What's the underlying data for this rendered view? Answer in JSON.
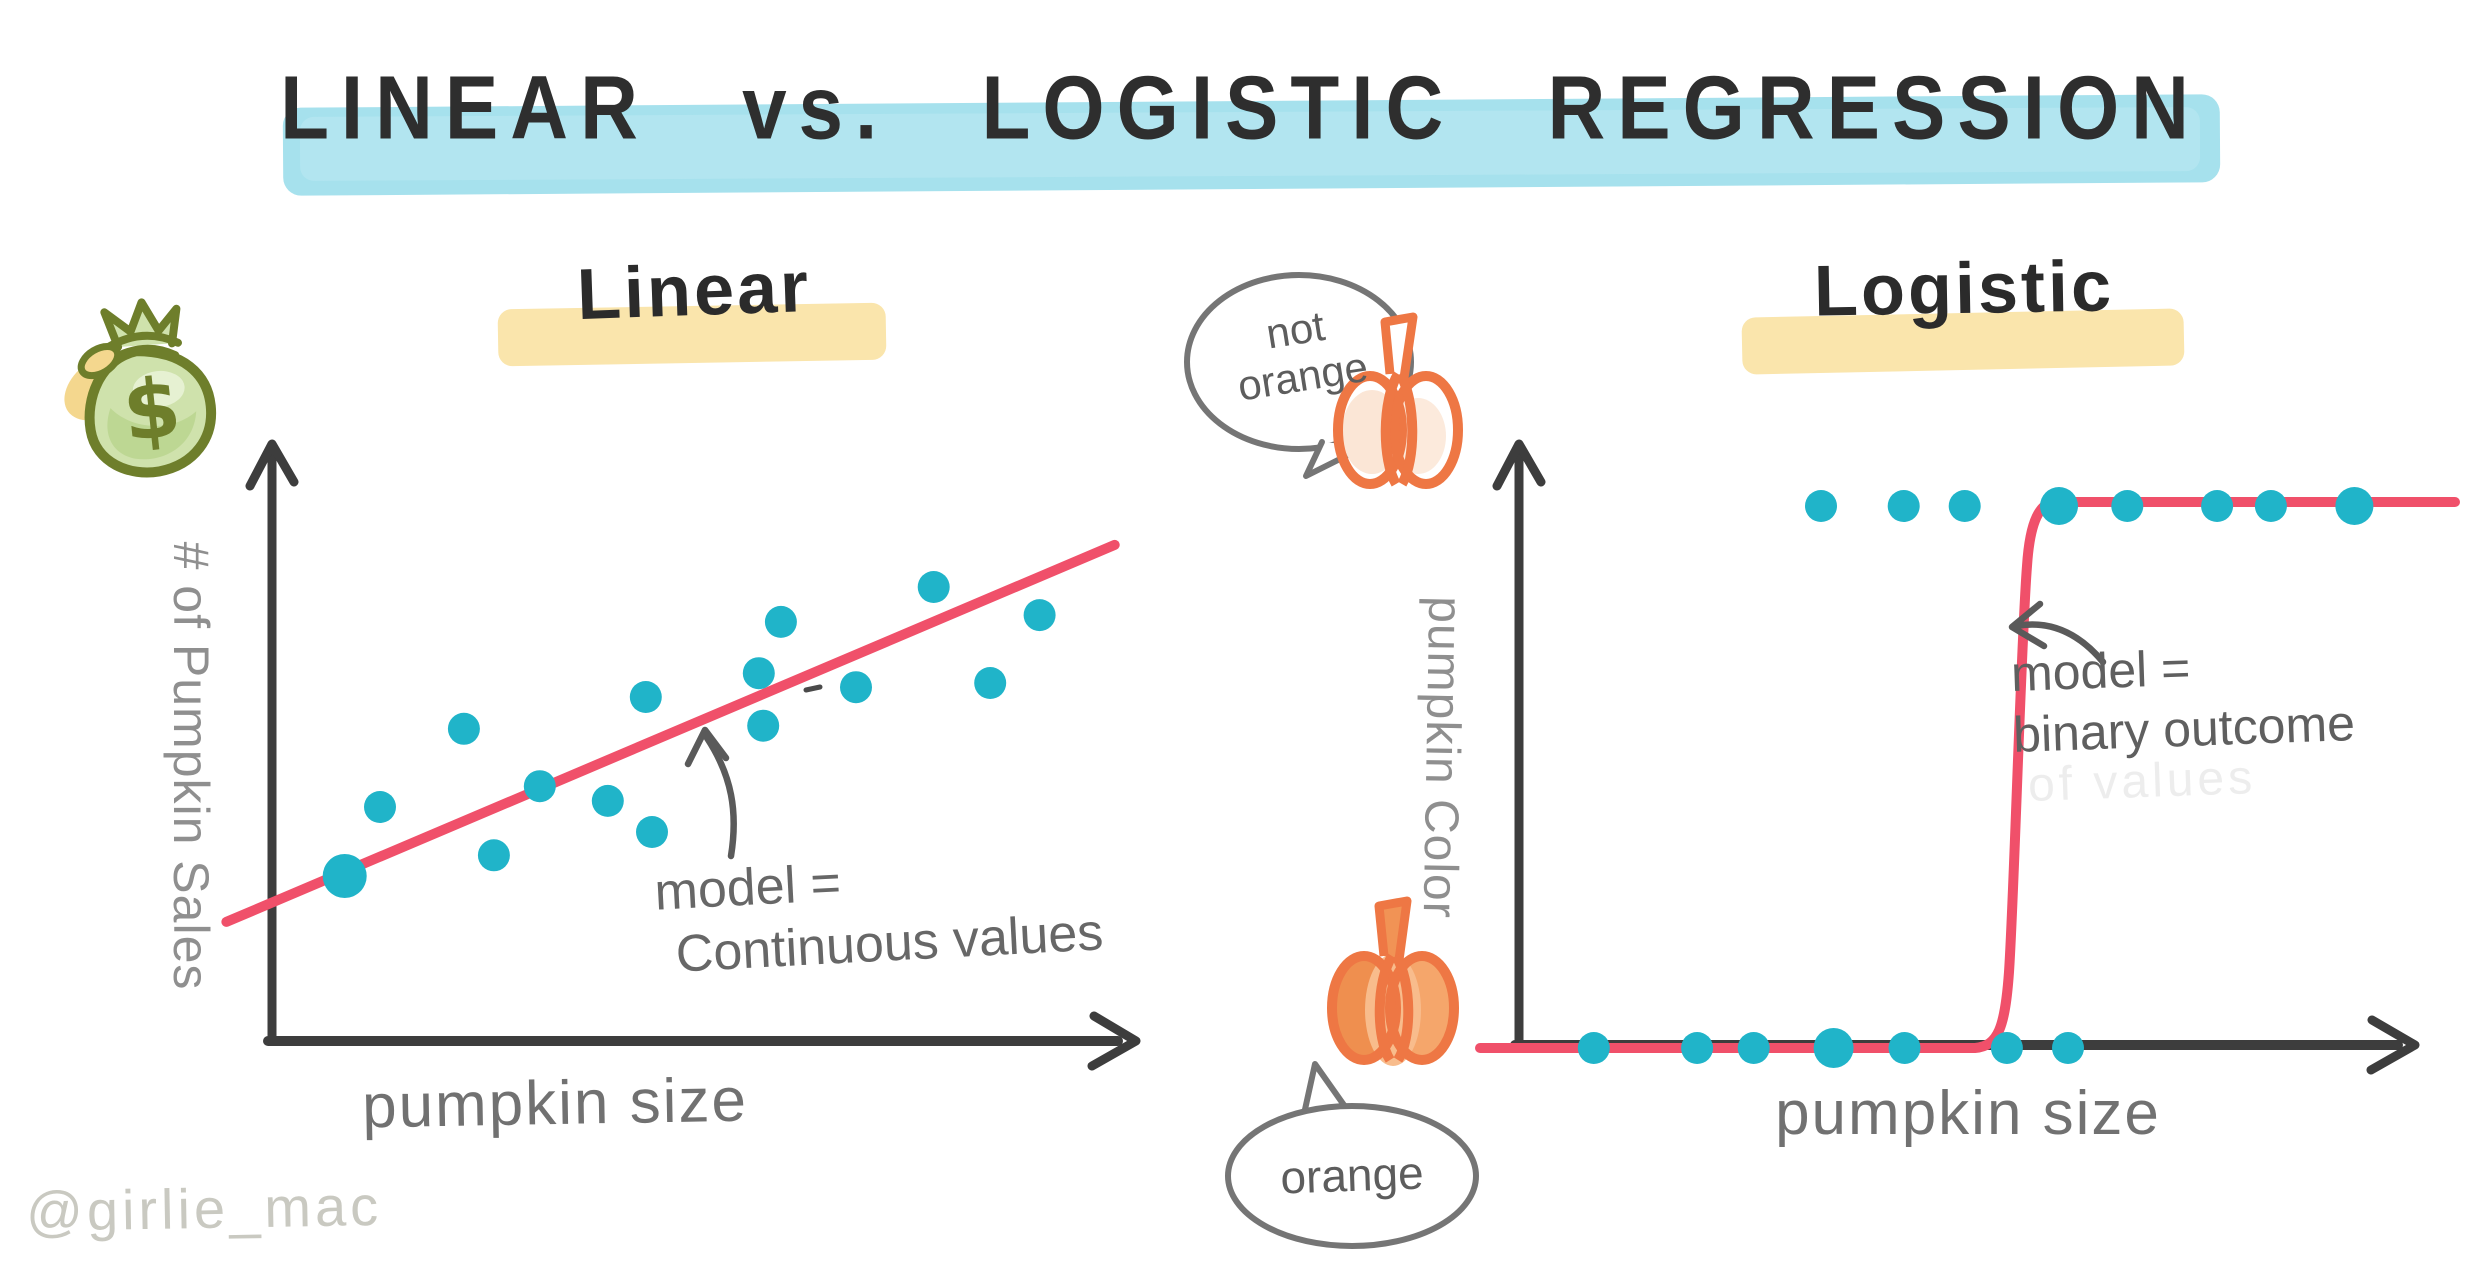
{
  "page": {
    "title": "LINEAR vs. LOGISTIC REGRESSION",
    "watermark": "@girlie_mac",
    "background": "#ffffff"
  },
  "colors": {
    "title_highlight": "#a6e1ed",
    "heading_highlight": "#fae5ac",
    "dot_teal": "#20b4c9",
    "model_line_red": "#f0506a",
    "axis_gray": "#3d3d3d",
    "handwriting_gray": "#676767",
    "label_gray": "#8f8f8f",
    "pumpkin_orange": "#ee7744",
    "money_bag_olive": "#6e7e2b",
    "ghost_gray": "#ededed"
  },
  "left_panel": {
    "heading": "Linear",
    "ylabel": "# of Pumpkin Sales",
    "xlabel": "pumpkin size",
    "annotation_line1": "model =",
    "annotation_line2": "Continuous values",
    "money_symbol": "$",
    "icon": "money-bag-icon"
  },
  "right_panel": {
    "heading": "Logistic",
    "ylabel": "pumpkin Color",
    "xlabel": "pumpkin size",
    "annotation_line1": "model =",
    "annotation_line2": "binary outcome",
    "ghost_text": "of values",
    "bubble_top_line1": "not",
    "bubble_top_line2": "orange",
    "bubble_bottom": "orange",
    "icons": [
      "not-orange-pumpkin-icon",
      "orange-pumpkin-icon"
    ]
  },
  "chart_data": [
    {
      "id": "linear-regression",
      "type": "scatter",
      "title": "Linear",
      "xlabel": "pumpkin size",
      "ylabel": "# of Pumpkin Sales",
      "axes_numeric": false,
      "x_range": [
        0,
        10
      ],
      "y_range": [
        0,
        10
      ],
      "grid": false,
      "points": [
        [
          0.88,
          2.7,
          22
        ],
        [
          1.28,
          3.83
        ],
        [
          2.23,
          5.11
        ],
        [
          2.57,
          3.04
        ],
        [
          3.09,
          4.17
        ],
        [
          3.86,
          3.93
        ],
        [
          4.29,
          5.63
        ],
        [
          4.36,
          3.42
        ],
        [
          5.57,
          6.02
        ],
        [
          5.62,
          5.16
        ],
        [
          5.82,
          6.86
        ],
        [
          6.67,
          5.79
        ],
        [
          7.55,
          7.43
        ],
        [
          8.19,
          5.86
        ],
        [
          8.75,
          6.97
        ]
      ],
      "trend_line": {
        "x1": -0.46,
        "y1": 1.95,
        "x2": 9.6,
        "y2": 8.12
      },
      "annotation": "model = Continuous values",
      "point_color": "#20b4c9",
      "line_color": "#f0506a",
      "default_point_radius": 16
    },
    {
      "id": "logistic-regression",
      "type": "scatter",
      "title": "Logistic",
      "xlabel": "pumpkin size",
      "ylabel": "pumpkin Color",
      "axes_numeric": false,
      "x_range": [
        0,
        10
      ],
      "y_categories": [
        "orange (y=0)",
        "not orange (y=1)"
      ],
      "grid": false,
      "series": [
        {
          "name": "not orange",
          "y": 1,
          "x": [
            3.33,
            4.25,
            4.93,
            5.98,
            6.74,
            7.74,
            8.34,
            9.27
          ],
          "r": [
            16,
            16,
            16,
            19,
            16,
            16,
            16,
            19
          ]
        },
        {
          "name": "orange",
          "y": 0,
          "x": [
            0.8,
            1.95,
            2.58,
            3.47,
            4.26,
            5.4,
            6.08
          ],
          "r": [
            16,
            16,
            16,
            20,
            16,
            16,
            16
          ]
        }
      ],
      "sigmoid": {
        "x_start": -0.47,
        "x_bend_bottom": 5.04,
        "x_bend_top": 5.95,
        "x_end": 10.39,
        "y_low": 0,
        "y_high": 1
      },
      "annotation": "model = binary outcome",
      "point_color": "#20b4c9",
      "line_color": "#f0506a",
      "default_point_radius": 16
    }
  ]
}
